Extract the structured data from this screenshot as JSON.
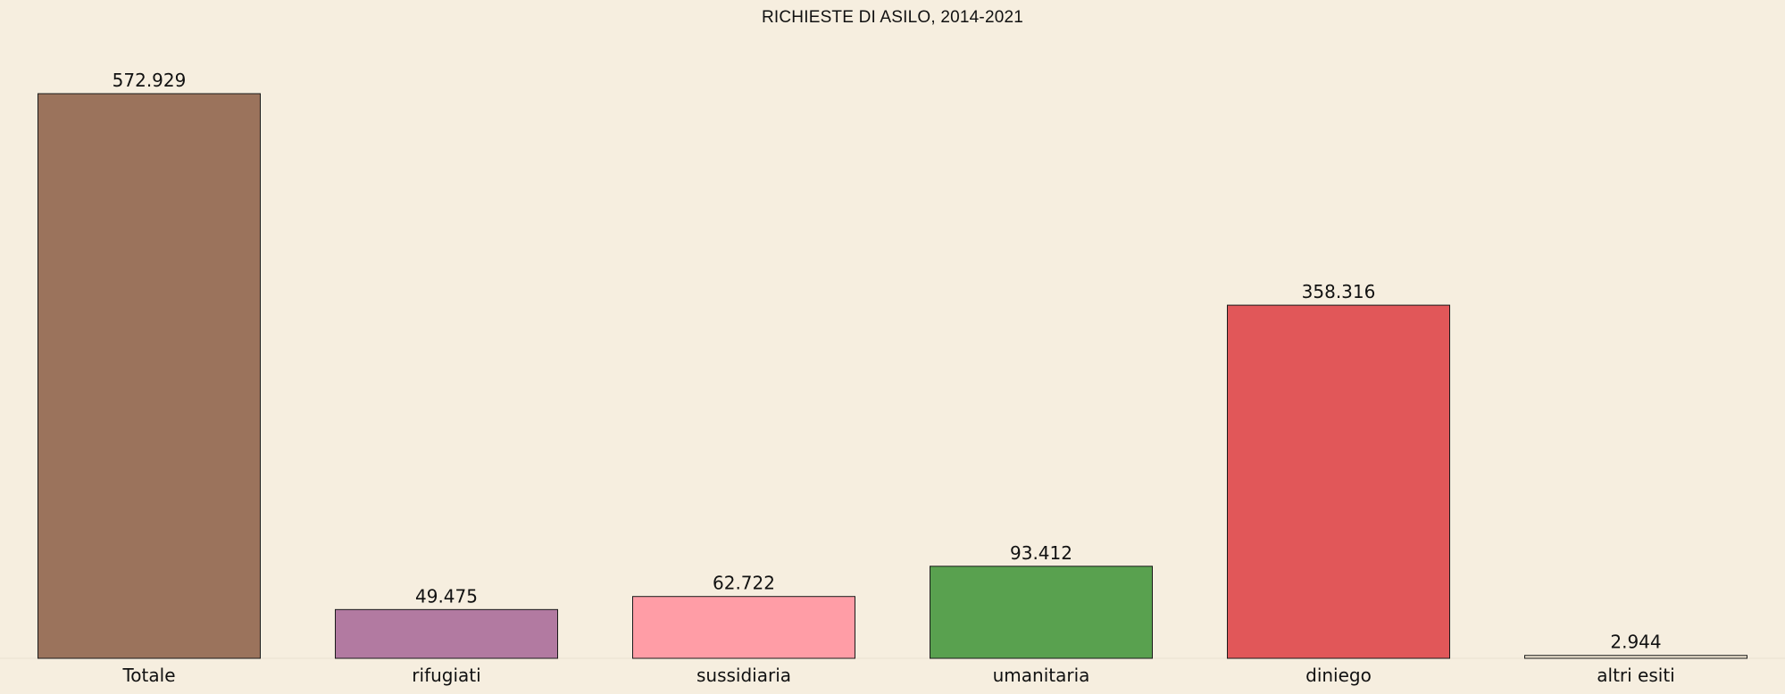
{
  "chart_data": {
    "type": "bar",
    "title": "RICHIESTE DI ASILO, 2014-2021",
    "xlabel": "",
    "ylabel": "",
    "categories": [
      "Totale",
      "rifugiati",
      "sussidiaria",
      "umanitaria",
      "diniego",
      "altri esiti"
    ],
    "values": [
      572929,
      49475,
      62722,
      93412,
      358316,
      2944
    ],
    "value_labels": [
      "572.929",
      "49.475",
      "62.722",
      "93.412",
      "358.316",
      "2.944"
    ],
    "colors": [
      "#9b735c",
      "#b27aa1",
      "#ff9da6",
      "#59a14f",
      "#e15759",
      "#ece2cf"
    ],
    "ylim": [
      0,
      572929
    ],
    "grid": false,
    "legend": "none",
    "background": "#f6eedf",
    "bar_edge_color": "#1a1a1a"
  }
}
